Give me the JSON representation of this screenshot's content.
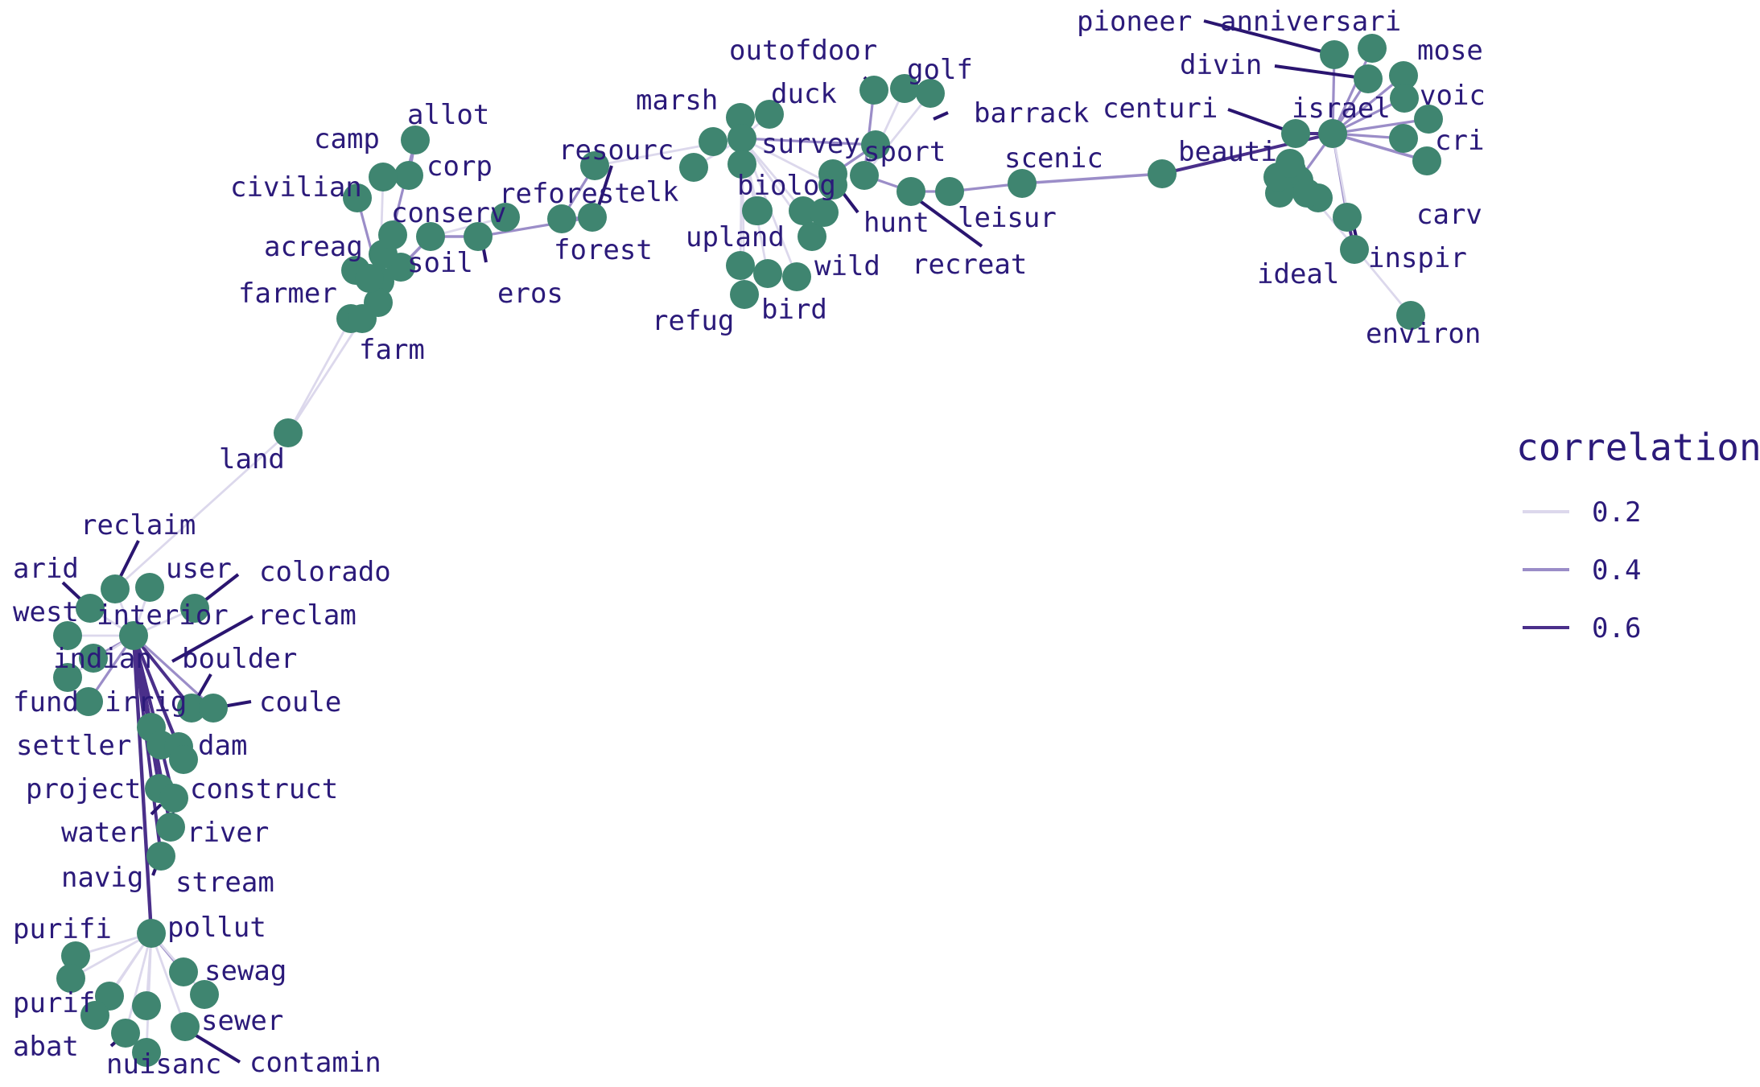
{
  "legend": {
    "title": "correlation",
    "items": [
      {
        "label": "0.2",
        "color": "#dcd8ec"
      },
      {
        "label": "0.4",
        "color": "#9b8dc8"
      },
      {
        "label": "0.6",
        "color": "#4a2f8a"
      }
    ]
  },
  "colors": {
    "node": "#3f8570",
    "text": "#2b1a7a",
    "leader": "#2a1570"
  },
  "labels": [
    "pioneer",
    "anniversari",
    "mose",
    "divin",
    "voic",
    "centuri",
    "israel",
    "cri",
    "beauti",
    "carv",
    "inspir",
    "ideal",
    "environ",
    "scenic",
    "leisur",
    "recreat",
    "hunt",
    "sport",
    "barrack",
    "golf",
    "outofdoor",
    "duck",
    "marsh",
    "survey",
    "resourc",
    "elk",
    "biolog",
    "upland",
    "wild",
    "bird",
    "refug",
    "forest",
    "reforest",
    "eros",
    "conserv",
    "soil",
    "corp",
    "allot",
    "camp",
    "civilian",
    "acreag",
    "farmer",
    "farm",
    "land",
    "reclaim",
    "user",
    "colorado",
    "arid",
    "west",
    "interior",
    "reclam",
    "indian",
    "boulder",
    "fund",
    "irrig",
    "coule",
    "settler",
    "dam",
    "project",
    "construct",
    "water",
    "river",
    "navig",
    "stream",
    "purifi",
    "pollut",
    "sewag",
    "purif",
    "sewer",
    "abat",
    "nuisanc",
    "contamin"
  ]
}
